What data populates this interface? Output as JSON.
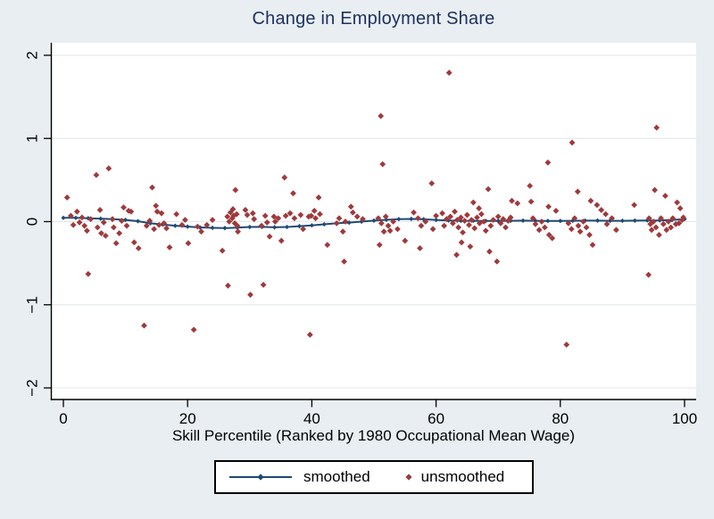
{
  "figure": {
    "title": "Change in Employment Share",
    "xlabel": "Skill Percentile (Ranked by 1980 Occupational Mean Wage)"
  },
  "legend": {
    "smoothed_label": "smoothed",
    "unsmoothed_label": "unsmoothed"
  },
  "colors": {
    "background": "#e9eef2",
    "plot_background": "#ffffff",
    "grid": "#dfe6ed",
    "axis": "#000000",
    "title_text": "#1d3160",
    "smoothed": "#1e4a73",
    "unsmoothed": "#9e3a3c"
  },
  "chart_data": {
    "type": "scatter",
    "title": "Change in Employment Share",
    "xlabel": "Skill Percentile (Ranked by 1980 Occupational Mean Wage)",
    "ylabel": "",
    "xlim": [
      -2,
      102
    ],
    "ylim": [
      -2.14,
      2.15
    ],
    "xticks": [
      0,
      20,
      40,
      60,
      80,
      100
    ],
    "yticks": [
      2,
      1,
      0,
      -1,
      -2
    ],
    "grid": "horizontal",
    "legend_position": "bottom-center",
    "series": [
      {
        "name": "smoothed",
        "type": "line-with-markers",
        "x": [
          0,
          2,
          4,
          6,
          8,
          10,
          12,
          14,
          16,
          18,
          20,
          22,
          24,
          26,
          28,
          30,
          32,
          34,
          36,
          38,
          40,
          42,
          44,
          46,
          48,
          50,
          52,
          54,
          56,
          58,
          60,
          62,
          64,
          66,
          68,
          70,
          72,
          74,
          76,
          78,
          80,
          82,
          84,
          86,
          88,
          90,
          92,
          94,
          96,
          98,
          100
        ],
        "y": [
          0.045,
          0.045,
          0.04,
          0.035,
          0.03,
          0.02,
          0.005,
          -0.02,
          -0.035,
          -0.05,
          -0.06,
          -0.07,
          -0.075,
          -0.078,
          -0.072,
          -0.065,
          -0.063,
          -0.068,
          -0.065,
          -0.055,
          -0.045,
          -0.032,
          -0.02,
          -0.012,
          0.0,
          0.012,
          0.022,
          0.03,
          0.032,
          0.028,
          0.02,
          0.013,
          0.01,
          0.01,
          0.008,
          0.008,
          0.01,
          0.012,
          0.01,
          0.008,
          0.008,
          0.01,
          0.012,
          0.012,
          0.01,
          0.01,
          0.012,
          0.014,
          0.015,
          0.02,
          0.03
        ]
      },
      {
        "name": "unsmoothed",
        "type": "scatter",
        "points": [
          [
            0.6,
            0.29
          ],
          [
            1.2,
            0.07
          ],
          [
            1.6,
            -0.04
          ],
          [
            2.2,
            0.12
          ],
          [
            2.6,
            -0.01
          ],
          [
            3.0,
            0.05
          ],
          [
            3.4,
            -0.05
          ],
          [
            3.8,
            -0.11
          ],
          [
            4.0,
            -0.63
          ],
          [
            4.4,
            0.03
          ],
          [
            5.3,
            0.56
          ],
          [
            5.5,
            -0.07
          ],
          [
            5.9,
            0.14
          ],
          [
            6.1,
            -0.14
          ],
          [
            6.5,
            -0.01
          ],
          [
            6.8,
            -0.17
          ],
          [
            7.3,
            0.64
          ],
          [
            7.9,
            0.03
          ],
          [
            8.1,
            -0.07
          ],
          [
            8.5,
            -0.26
          ],
          [
            9.0,
            -0.14
          ],
          [
            9.4,
            0.01
          ],
          [
            9.7,
            0.17
          ],
          [
            10.2,
            -0.05
          ],
          [
            10.5,
            0.13
          ],
          [
            10.9,
            0.12
          ],
          [
            11.4,
            -0.25
          ],
          [
            12.1,
            -0.32
          ],
          [
            13.0,
            -1.25
          ],
          [
            13.4,
            -0.05
          ],
          [
            13.9,
            0.01
          ],
          [
            14.3,
            0.41
          ],
          [
            14.6,
            -0.09
          ],
          [
            14.9,
            0.19
          ],
          [
            15.1,
            0.12
          ],
          [
            15.4,
            -0.04
          ],
          [
            15.8,
            0.1
          ],
          [
            16.2,
            -0.02
          ],
          [
            16.6,
            -0.08
          ],
          [
            17.1,
            -0.31
          ],
          [
            18.2,
            0.09
          ],
          [
            19.1,
            -0.04
          ],
          [
            19.6,
            0.02
          ],
          [
            20.1,
            -0.26
          ],
          [
            21.0,
            -1.3
          ],
          [
            21.6,
            -0.06
          ],
          [
            22.2,
            -0.12
          ],
          [
            23.1,
            -0.04
          ],
          [
            24.0,
            0.02
          ],
          [
            25.6,
            -0.35
          ],
          [
            26.4,
            0.06
          ],
          [
            26.5,
            -0.77
          ],
          [
            26.7,
            0.0
          ],
          [
            26.9,
            0.11
          ],
          [
            27.2,
            0.04
          ],
          [
            27.3,
            0.15
          ],
          [
            27.4,
            0.07
          ],
          [
            27.6,
            -0.02
          ],
          [
            27.7,
            0.38
          ],
          [
            27.9,
            0.09
          ],
          [
            28.0,
            -0.05
          ],
          [
            28.1,
            -0.12
          ],
          [
            29.3,
            0.14
          ],
          [
            29.6,
            0.08
          ],
          [
            30.1,
            -0.88
          ],
          [
            30.5,
            0.1
          ],
          [
            30.7,
            0.03
          ],
          [
            31.9,
            -0.05
          ],
          [
            32.2,
            -0.76
          ],
          [
            32.5,
            0.07
          ],
          [
            32.8,
            -0.01
          ],
          [
            33.2,
            -0.18
          ],
          [
            33.9,
            0.06
          ],
          [
            34.1,
            0.0
          ],
          [
            34.6,
            0.04
          ],
          [
            35.1,
            -0.23
          ],
          [
            35.6,
            0.53
          ],
          [
            35.8,
            0.07
          ],
          [
            36.5,
            0.1
          ],
          [
            37.0,
            0.34
          ],
          [
            37.2,
            0.04
          ],
          [
            38.2,
            0.08
          ],
          [
            38.6,
            -0.09
          ],
          [
            39.5,
            0.06
          ],
          [
            39.7,
            -1.36
          ],
          [
            39.9,
            0.07
          ],
          [
            40.4,
            0.13
          ],
          [
            40.6,
            0.04
          ],
          [
            41.1,
            0.29
          ],
          [
            41.3,
            0.09
          ],
          [
            42.5,
            -0.28
          ],
          [
            44.0,
            -0.02
          ],
          [
            44.4,
            0.04
          ],
          [
            45.0,
            -0.12
          ],
          [
            45.2,
            -0.48
          ],
          [
            45.4,
            0.0
          ],
          [
            46.3,
            0.18
          ],
          [
            46.6,
            0.11
          ],
          [
            47.3,
            0.06
          ],
          [
            48.2,
            0.03
          ],
          [
            50.7,
            0.04
          ],
          [
            50.9,
            -0.28
          ],
          [
            51.1,
            1.27
          ],
          [
            51.2,
            -0.02
          ],
          [
            51.4,
            0.69
          ],
          [
            51.6,
            -0.12
          ],
          [
            51.9,
            0.06
          ],
          [
            52.3,
            -0.05
          ],
          [
            52.6,
            -0.11
          ],
          [
            53.1,
            0.0
          ],
          [
            53.8,
            -0.09
          ],
          [
            55.0,
            -0.23
          ],
          [
            56.4,
            0.11
          ],
          [
            57.1,
            0.04
          ],
          [
            57.4,
            -0.32
          ],
          [
            57.6,
            -0.05
          ],
          [
            58.3,
            0.0
          ],
          [
            59.3,
            0.46
          ],
          [
            59.5,
            -0.09
          ],
          [
            60.0,
            0.07
          ],
          [
            61.0,
            0.1
          ],
          [
            61.3,
            -0.05
          ],
          [
            61.7,
            0.03
          ],
          [
            62.1,
            1.79
          ],
          [
            62.3,
            0.06
          ],
          [
            62.7,
            -0.02
          ],
          [
            63.0,
            0.12
          ],
          [
            63.3,
            -0.4
          ],
          [
            63.4,
            0.02
          ],
          [
            63.6,
            -0.07
          ],
          [
            64.0,
            0.05
          ],
          [
            64.1,
            -0.25
          ],
          [
            64.3,
            -0.13
          ],
          [
            64.6,
            0.01
          ],
          [
            65.0,
            0.08
          ],
          [
            65.3,
            -0.04
          ],
          [
            65.5,
            -0.3
          ],
          [
            65.7,
            0.02
          ],
          [
            66.0,
            0.23
          ],
          [
            66.2,
            -0.08
          ],
          [
            66.6,
            0.05
          ],
          [
            66.9,
            0.16
          ],
          [
            67.0,
            -0.02
          ],
          [
            67.3,
            0.09
          ],
          [
            67.7,
            0.0
          ],
          [
            68.0,
            -0.11
          ],
          [
            68.4,
            0.39
          ],
          [
            68.6,
            -0.36
          ],
          [
            68.8,
            -0.05
          ],
          [
            69.2,
            0.02
          ],
          [
            69.8,
            -0.48
          ],
          [
            70.0,
            0.06
          ],
          [
            70.4,
            -0.02
          ],
          [
            70.8,
            0.03
          ],
          [
            71.2,
            -0.07
          ],
          [
            71.6,
            0.01
          ],
          [
            72.0,
            0.05
          ],
          [
            72.2,
            0.25
          ],
          [
            73.1,
            0.22
          ],
          [
            75.1,
            0.43
          ],
          [
            75.3,
            0.24
          ],
          [
            75.6,
            0.04
          ],
          [
            76.0,
            -0.03
          ],
          [
            76.6,
            -0.1
          ],
          [
            77.0,
            0.0
          ],
          [
            77.5,
            -0.07
          ],
          [
            78.0,
            0.71
          ],
          [
            78.1,
            0.18
          ],
          [
            78.2,
            -0.16
          ],
          [
            78.7,
            -0.2
          ],
          [
            79.3,
            0.13
          ],
          [
            81.0,
            -1.48
          ],
          [
            81.3,
            -0.02
          ],
          [
            81.8,
            -0.09
          ],
          [
            81.9,
            0.95
          ],
          [
            82.3,
            0.04
          ],
          [
            82.8,
            0.36
          ],
          [
            82.9,
            -0.05
          ],
          [
            83.2,
            -0.12
          ],
          [
            83.7,
            0.0
          ],
          [
            84.2,
            -0.07
          ],
          [
            84.7,
            -0.16
          ],
          [
            84.9,
            0.25
          ],
          [
            85.2,
            -0.28
          ],
          [
            85.9,
            0.2
          ],
          [
            86.6,
            0.14
          ],
          [
            87.3,
            0.09
          ],
          [
            87.5,
            -0.03
          ],
          [
            88.3,
            0.04
          ],
          [
            89.0,
            -0.1
          ],
          [
            91.9,
            0.2
          ],
          [
            94.2,
            -0.64
          ],
          [
            94.3,
            0.04
          ],
          [
            94.5,
            -0.03
          ],
          [
            94.7,
            -0.1
          ],
          [
            95.0,
            0.0
          ],
          [
            95.2,
            0.38
          ],
          [
            95.4,
            -0.07
          ],
          [
            95.5,
            1.13
          ],
          [
            95.9,
            -0.16
          ],
          [
            96.2,
            0.04
          ],
          [
            96.6,
            -0.03
          ],
          [
            96.9,
            0.31
          ],
          [
            97.1,
            -0.1
          ],
          [
            97.4,
            0.0
          ],
          [
            97.8,
            -0.07
          ],
          [
            98.1,
            0.04
          ],
          [
            98.6,
            -0.03
          ],
          [
            98.8,
            0.23
          ],
          [
            99.1,
            -0.02
          ],
          [
            99.3,
            0.16
          ],
          [
            99.6,
            0.02
          ],
          [
            99.8,
            0.05
          ]
        ]
      }
    ]
  }
}
